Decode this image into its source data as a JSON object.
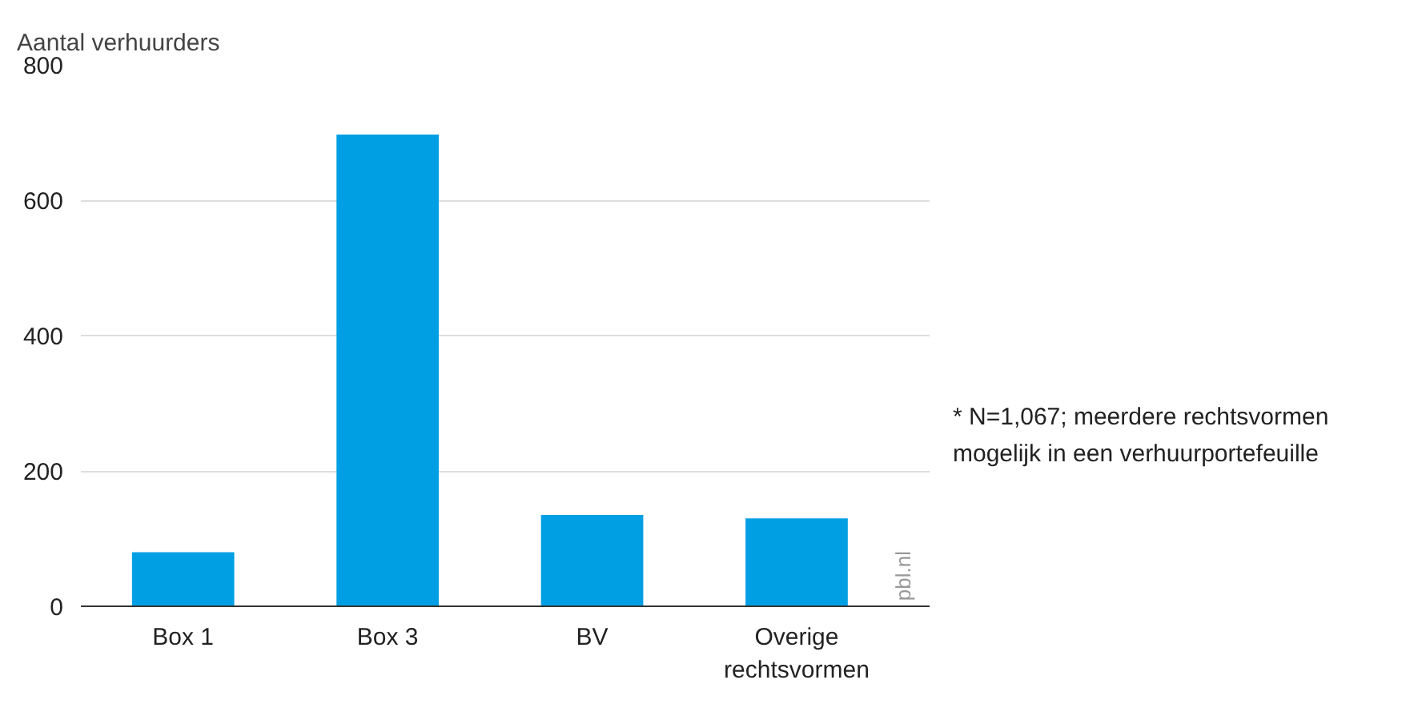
{
  "chart_data": {
    "type": "bar",
    "ylabel": "Aantal verhuurders",
    "categories": [
      "Box 1",
      "Box 3",
      "BV",
      "Overige rechtsvormen"
    ],
    "values": [
      80,
      697,
      135,
      130
    ],
    "color": "#009fe3",
    "ylim": [
      0,
      800
    ],
    "yticks": [
      0,
      200,
      400,
      600,
      800
    ],
    "grid": "y",
    "annotations": [
      "* N=1,067; meerdere rechtsvormen mogelijk in een verhuurportefeuille",
      "pbl.nl"
    ]
  }
}
